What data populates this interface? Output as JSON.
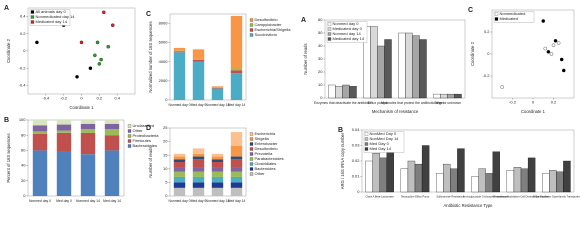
{
  "chart_data": [
    {
      "type": "scatter",
      "label": "A",
      "xlabel": "Coordinate 1",
      "ylabel": "Coordinate 2",
      "xlim": [
        -0.6,
        0.6
      ],
      "ylim": [
        -0.5,
        0.5
      ],
      "xticks": [
        -0.4,
        -0.2,
        0,
        0.2,
        0.4
      ],
      "yticks": [
        -0.4,
        -0.2,
        0,
        0.2,
        0.4
      ],
      "legend": "top-left",
      "series": [
        {
          "name": "All animals day 0",
          "color": "#000000",
          "x": [
            -0.5,
            -0.05,
            0.1,
            -0.2
          ],
          "y": [
            0.1,
            -0.3,
            -0.2,
            0.3
          ]
        },
        {
          "name": "Nonmedicated day 14",
          "color": "#2ca02c",
          "x": [
            0.15,
            0.2,
            0.22,
            0.3,
            0.18
          ],
          "y": [
            -0.05,
            -0.15,
            -0.1,
            0.05,
            0.1
          ]
        },
        {
          "name": "Medicated day 14",
          "color": "#d62728",
          "x": [
            0.0,
            0.25,
            0.35
          ],
          "y": [
            0.1,
            0.45,
            0.3
          ]
        }
      ]
    },
    {
      "type": "bar",
      "stacked": true,
      "label": "C",
      "ylabel": "Normalized number of 16S sequences",
      "categories": [
        "Nonmed day 0",
        "Med day 0",
        "Nonmed day 14",
        "Med day 14"
      ],
      "ylim": [
        0,
        9000
      ],
      "yticks": [
        0,
        2000,
        4000,
        6000,
        8000
      ],
      "legend": "right",
      "series": [
        {
          "name": "Succinivibrio",
          "color": "#4bacc6",
          "values": [
            5000,
            4000,
            1200,
            2800
          ]
        },
        {
          "name": "Escherichia/Shigella",
          "color": "#c0504d",
          "values": [
            100,
            200,
            50,
            300
          ]
        },
        {
          "name": "Campylobacter",
          "color": "#9bbb59",
          "values": [
            50,
            100,
            30,
            200
          ]
        },
        {
          "name": "Desulfovibrio",
          "color": "#f79646",
          "values": [
            300,
            1000,
            150,
            5500
          ]
        }
      ]
    },
    {
      "type": "bar",
      "stacked": true,
      "label": "B",
      "ylabel": "Percent of 16S sequences",
      "categories": [
        "Nonmed day 0",
        "Med day 0",
        "Nonmed day 14",
        "Med day 14"
      ],
      "ylim": [
        0,
        100
      ],
      "yticks": [
        0,
        20,
        40,
        60,
        80,
        100
      ],
      "legend": "right",
      "series": [
        {
          "name": "Bacteroidetes",
          "color": "#4f81bd",
          "values": [
            60,
            58,
            55,
            60
          ]
        },
        {
          "name": "Firmicutes",
          "color": "#c0504d",
          "values": [
            22,
            25,
            28,
            20
          ]
        },
        {
          "name": "Proteobacteria",
          "color": "#9bbb59",
          "values": [
            3,
            3,
            5,
            8
          ]
        },
        {
          "name": "Other",
          "color": "#8064a2",
          "values": [
            8,
            8,
            7,
            7
          ]
        },
        {
          "name": "Unclassified",
          "color": "#d7e4bd",
          "values": [
            7,
            6,
            5,
            5
          ]
        }
      ]
    },
    {
      "type": "bar",
      "stacked": true,
      "label": "D",
      "ylabel": "Number of reads",
      "categories": [
        "Nonmed day 0",
        "Med day 0",
        "Nonmed day 14",
        "Med day 14"
      ],
      "ylim": [
        0,
        25
      ],
      "yticks": [
        0,
        5,
        10,
        15,
        20,
        25
      ],
      "legend": "right",
      "series": [
        {
          "name": "Other",
          "color": "#bfbfbf",
          "values": [
            3,
            3,
            3,
            3
          ]
        },
        {
          "name": "Bacteroides",
          "color": "#1f3a93",
          "values": [
            2,
            2,
            2,
            2
          ]
        },
        {
          "name": "Clostridiales",
          "color": "#4bacc6",
          "values": [
            2,
            2,
            2,
            2
          ]
        },
        {
          "name": "Parabacteroides",
          "color": "#9bbb59",
          "values": [
            2,
            2,
            2,
            2
          ]
        },
        {
          "name": "Prevotella",
          "color": "#8064a2",
          "values": [
            1.5,
            1.5,
            1.5,
            1.5
          ]
        },
        {
          "name": "Desulfovibrio",
          "color": "#c0504d",
          "values": [
            2,
            3,
            2,
            3
          ]
        },
        {
          "name": "Enterobacter",
          "color": "#2c4d75",
          "values": [
            1,
            1,
            1,
            1
          ]
        },
        {
          "name": "Shigella",
          "color": "#f79646",
          "values": [
            1,
            1,
            1,
            4
          ]
        },
        {
          "name": "Escherichia",
          "color": "#fac090",
          "values": [
            1,
            2,
            1,
            5
          ]
        }
      ]
    },
    {
      "type": "bar",
      "stacked": false,
      "label": "A",
      "xlabel": "Mechanism of resistance",
      "ylabel": "Number of reads",
      "categories": [
        "Enzymes that deactivate the antibiotic",
        "Efflux pumps",
        "Molecules that protect the antibiotic target",
        "Other or unknown"
      ],
      "ylim": [
        0,
        60
      ],
      "yticks": [
        0,
        10,
        20,
        30,
        40,
        50,
        60
      ],
      "legend": "top-left",
      "series": [
        {
          "name": "Nonmed day 0",
          "color": "#ffffff",
          "values": [
            10,
            55,
            50,
            3
          ]
        },
        {
          "name": "Medicated day 0",
          "color": "#d9d9d9",
          "values": [
            9,
            55,
            50,
            3
          ]
        },
        {
          "name": "Nonmed day 14",
          "color": "#a6a6a6",
          "values": [
            10,
            40,
            48,
            3
          ]
        },
        {
          "name": "Medicated day 14",
          "color": "#595959",
          "values": [
            9,
            45,
            45,
            3
          ]
        }
      ]
    },
    {
      "type": "scatter",
      "label": "C",
      "xlabel": "Coordinate 1",
      "ylabel": "Coordinate 2",
      "xlim": [
        -0.4,
        0.4
      ],
      "ylim": [
        -0.4,
        0.4
      ],
      "xticks": [
        -0.2,
        0,
        0.2
      ],
      "yticks": [
        -0.2,
        0,
        0.2
      ],
      "legend": "top-left",
      "series": [
        {
          "name": "Nonmedicated",
          "color": "#ffffff",
          "x": [
            0.12,
            0.18,
            0.2,
            0.25,
            -0.3
          ],
          "y": [
            0.05,
            0.0,
            0.08,
            0.1,
            -0.3
          ]
        },
        {
          "name": "Medicated",
          "color": "#000000",
          "x": [
            0.15,
            0.22,
            0.28,
            0.1,
            0.3
          ],
          "y": [
            0.02,
            0.12,
            -0.05,
            0.3,
            -0.15
          ]
        }
      ]
    },
    {
      "type": "bar",
      "stacked": false,
      "label": "B",
      "xlabel": "Antibiotic Resistance Type",
      "ylabel": "ARG / 16S rRNA copy number",
      "categories": [
        "Class A Beta-Lactamase",
        "Tetracycline Efflux Pump",
        "Sulfonamide Resistance",
        "Aminoglycoside O-phospho-transferase",
        "Resistance-Nodulation-Cell Division Transporter",
        "Major Facilitator Superfamily Transporter"
      ],
      "ylim": [
        0,
        0.04
      ],
      "yticks": [
        0,
        0.01,
        0.02,
        0.03,
        0.04
      ],
      "legend": "top-left",
      "series": [
        {
          "name": "NonMed Day 0",
          "color": "#ffffff",
          "values": [
            0.02,
            0.015,
            0.012,
            0.01,
            0.014,
            0.012
          ]
        },
        {
          "name": "NonMed Day 14",
          "color": "#bfbfbf",
          "values": [
            0.025,
            0.02,
            0.018,
            0.015,
            0.016,
            0.014
          ]
        },
        {
          "name": "Med Day 0",
          "color": "#7f7f7f",
          "values": [
            0.022,
            0.018,
            0.015,
            0.012,
            0.015,
            0.013
          ]
        },
        {
          "name": "Med Day 14",
          "color": "#404040",
          "values": [
            0.035,
            0.03,
            0.028,
            0.026,
            0.022,
            0.02
          ]
        }
      ]
    }
  ]
}
